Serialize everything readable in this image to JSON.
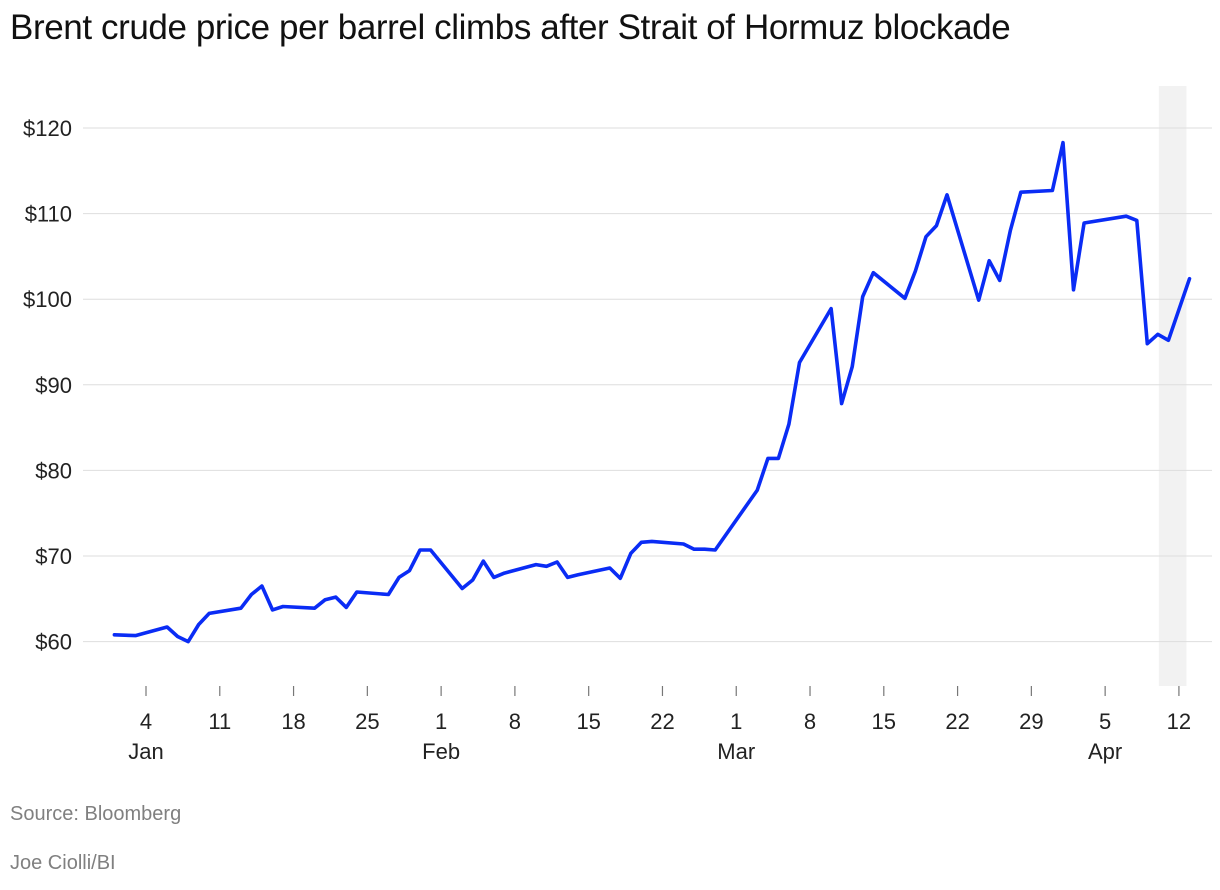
{
  "title": "Brent crude price per barrel climbs after Strait of Hormuz blockade",
  "source": "Source: Bloomberg",
  "credit": "Joe Ciolli/BI",
  "chart_data": {
    "type": "line",
    "title": "Brent crude price per barrel climbs after Strait of Hormuz blockade",
    "xlabel": "",
    "ylabel": "",
    "y_tick_values": [
      60,
      70,
      80,
      90,
      100,
      110,
      120
    ],
    "y_tick_labels": [
      "$60",
      "$70",
      "$80",
      "$90",
      "$100",
      "$110",
      "$120"
    ],
    "ylim": [
      55,
      125
    ],
    "xlim": [
      "2026-12-31",
      "2027-04-13"
    ],
    "x_ticks": [
      {
        "date": "2027-01-04",
        "label": "4",
        "month": "Jan"
      },
      {
        "date": "2027-01-11",
        "label": "11",
        "month": ""
      },
      {
        "date": "2027-01-18",
        "label": "18",
        "month": ""
      },
      {
        "date": "2027-01-25",
        "label": "25",
        "month": ""
      },
      {
        "date": "2027-02-01",
        "label": "1",
        "month": "Feb"
      },
      {
        "date": "2027-02-08",
        "label": "8",
        "month": ""
      },
      {
        "date": "2027-02-15",
        "label": "15",
        "month": ""
      },
      {
        "date": "2027-02-22",
        "label": "22",
        "month": ""
      },
      {
        "date": "2027-03-01",
        "label": "1",
        "month": "Mar"
      },
      {
        "date": "2027-03-08",
        "label": "8",
        "month": ""
      },
      {
        "date": "2027-03-15",
        "label": "15",
        "month": ""
      },
      {
        "date": "2027-03-22",
        "label": "22",
        "month": ""
      },
      {
        "date": "2027-03-29",
        "label": "29",
        "month": ""
      },
      {
        "date": "2027-04-05",
        "label": "5",
        "month": "Apr"
      },
      {
        "date": "2027-04-12",
        "label": "12",
        "month": ""
      }
    ],
    "shaded_range": [
      "2027-04-10",
      "2027-04-13"
    ],
    "grid": true,
    "legend": "none",
    "series": [
      {
        "color": "#0a2cf5",
        "x": [
          "2027-01-01",
          "2027-01-03",
          "2027-01-06",
          "2027-01-07",
          "2027-01-08",
          "2027-01-09",
          "2027-01-10",
          "2027-01-13",
          "2027-01-14",
          "2027-01-15",
          "2027-01-16",
          "2027-01-17",
          "2027-01-20",
          "2027-01-21",
          "2027-01-22",
          "2027-01-23",
          "2027-01-24",
          "2027-01-27",
          "2027-01-28",
          "2027-01-29",
          "2027-01-30",
          "2027-01-31",
          "2027-02-03",
          "2027-02-04",
          "2027-02-05",
          "2027-02-06",
          "2027-02-07",
          "2027-02-10",
          "2027-02-11",
          "2027-02-12",
          "2027-02-13",
          "2027-02-14",
          "2027-02-17",
          "2027-02-18",
          "2027-02-19",
          "2027-02-20",
          "2027-02-21",
          "2027-02-24",
          "2027-02-25",
          "2027-02-26",
          "2027-02-27",
          "2027-03-03",
          "2027-03-04",
          "2027-03-05",
          "2027-03-06",
          "2027-03-07",
          "2027-03-10",
          "2027-03-11",
          "2027-03-12",
          "2027-03-13",
          "2027-03-14",
          "2027-03-17",
          "2027-03-18",
          "2027-03-19",
          "2027-03-20",
          "2027-03-21",
          "2027-03-24",
          "2027-03-25",
          "2027-03-26",
          "2027-03-27",
          "2027-03-28",
          "2027-03-31",
          "2027-04-01",
          "2027-04-02",
          "2027-04-03",
          "2027-04-07",
          "2027-04-08",
          "2027-04-09",
          "2027-04-10",
          "2027-04-11",
          "2027-04-13"
        ],
        "y": [
          60.8,
          60.7,
          61.7,
          60.6,
          60.0,
          62.0,
          63.3,
          63.9,
          65.5,
          66.5,
          63.7,
          64.1,
          63.9,
          64.9,
          65.2,
          64.0,
          65.8,
          65.5,
          67.5,
          68.3,
          70.7,
          70.7,
          66.2,
          67.2,
          69.4,
          67.5,
          68.0,
          69.0,
          68.8,
          69.3,
          67.5,
          67.8,
          68.6,
          67.4,
          70.3,
          71.6,
          71.7,
          71.4,
          70.8,
          70.8,
          70.7,
          77.7,
          81.4,
          81.4,
          85.4,
          92.6,
          98.9,
          87.8,
          92.1,
          100.3,
          103.1,
          100.1,
          103.3,
          107.3,
          108.6,
          112.2,
          99.9,
          104.5,
          102.2,
          108.0,
          112.5,
          112.7,
          118.3,
          101.1,
          108.9,
          109.7,
          109.2,
          94.8,
          95.9,
          95.2,
          102.4
        ]
      }
    ]
  }
}
